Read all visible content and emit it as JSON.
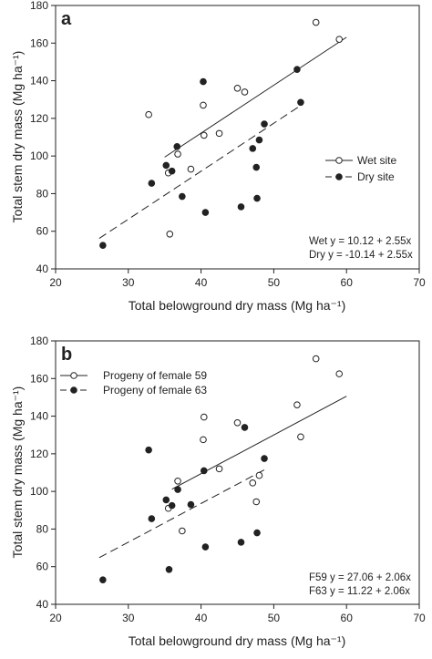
{
  "chart_data": [
    {
      "type": "scatter",
      "panel_label": "a",
      "xlabel": "Total belowground dry mass (Mg ha⁻¹)",
      "ylabel": "Total stem dry mass (Mg ha⁻¹)",
      "xlim": [
        20,
        70
      ],
      "ylim": [
        40,
        180
      ],
      "xticks": [
        "20",
        "30",
        "40",
        "50",
        "60",
        "70"
      ],
      "yticks": [
        "40",
        "60",
        "80",
        "100",
        "120",
        "140",
        "160",
        "180"
      ],
      "grid": false,
      "legend_position": "right",
      "series": [
        {
          "name": "Wet site",
          "marker": "open-circle",
          "line": "solid",
          "points": [
            [
              32.8,
              122
            ],
            [
              35.5,
              91
            ],
            [
              35.7,
              58.5
            ],
            [
              36.8,
              101
            ],
            [
              38.6,
              93
            ],
            [
              40.3,
              127
            ],
            [
              40.4,
              111
            ],
            [
              42.5,
              112
            ],
            [
              45.0,
              136
            ],
            [
              46.0,
              134
            ],
            [
              55.8,
              171
            ],
            [
              59.0,
              162
            ]
          ],
          "fit": {
            "x": [
              35.0,
              60.0
            ],
            "y": [
              99.4,
              163.1
            ]
          }
        },
        {
          "name": "Dry site",
          "marker": "filled-circle",
          "line": "dashed",
          "points": [
            [
              26.5,
              52.5
            ],
            [
              33.2,
              85.5
            ],
            [
              35.2,
              95
            ],
            [
              36.0,
              92
            ],
            [
              36.7,
              105
            ],
            [
              37.4,
              78.5
            ],
            [
              40.3,
              139.5
            ],
            [
              40.6,
              70
            ],
            [
              45.5,
              73
            ],
            [
              47.1,
              104
            ],
            [
              47.6,
              94
            ],
            [
              47.7,
              77.5
            ],
            [
              48.0,
              108.5
            ],
            [
              48.7,
              117
            ],
            [
              53.2,
              146
            ],
            [
              53.7,
              128.5
            ]
          ],
          "fit": {
            "x": [
              26.0,
              54.0
            ],
            "y": [
              56.2,
              127.6
            ]
          }
        }
      ],
      "annotations": [
        "Wet y = 10.12 + 2.55x",
        "Dry y = -10.14 + 2.55x"
      ]
    },
    {
      "type": "scatter",
      "panel_label": "b",
      "xlabel": "Total belowground dry mass (Mg ha⁻¹)",
      "ylabel": "Total stem dry mass (Mg ha⁻¹)",
      "xlim": [
        20,
        70
      ],
      "ylim": [
        40,
        180
      ],
      "xticks": [
        "20",
        "30",
        "40",
        "50",
        "60",
        "70"
      ],
      "yticks": [
        "40",
        "60",
        "80",
        "100",
        "120",
        "140",
        "160",
        "180"
      ],
      "grid": false,
      "legend_position": "top-left",
      "series": [
        {
          "name": "Progeny of female 59",
          "marker": "open-circle",
          "line": "solid",
          "points": [
            [
              35.5,
              91
            ],
            [
              36.8,
              105.5
            ],
            [
              37.4,
              79
            ],
            [
              40.3,
              127.5
            ],
            [
              40.4,
              139.5
            ],
            [
              42.5,
              112
            ],
            [
              45.0,
              136.5
            ],
            [
              47.1,
              104.5
            ],
            [
              47.6,
              94.5
            ],
            [
              48.0,
              108.5
            ],
            [
              53.2,
              146
            ],
            [
              53.7,
              129
            ],
            [
              55.8,
              170.5
            ],
            [
              59.0,
              162.5
            ]
          ],
          "fit": {
            "x": [
              36.0,
              60.0
            ],
            "y": [
              101.2,
              150.6
            ]
          }
        },
        {
          "name": "Progeny of female 63",
          "marker": "filled-circle",
          "line": "dashed",
          "points": [
            [
              26.5,
              53
            ],
            [
              32.8,
              122
            ],
            [
              33.2,
              85.5
            ],
            [
              35.2,
              95.5
            ],
            [
              35.6,
              58.5
            ],
            [
              36.0,
              92.5
            ],
            [
              36.8,
              101
            ],
            [
              38.6,
              93
            ],
            [
              40.4,
              111
            ],
            [
              40.6,
              70.5
            ],
            [
              45.5,
              73
            ],
            [
              46.0,
              134
            ],
            [
              47.7,
              78
            ],
            [
              48.7,
              117.5
            ]
          ],
          "fit": {
            "x": [
              26.0,
              49.0
            ],
            "y": [
              64.8,
              112.1
            ]
          }
        }
      ],
      "annotations": [
        "F59 y =  27.06 + 2.06x",
        "F63 y = 11.22 + 2.06x"
      ]
    }
  ]
}
